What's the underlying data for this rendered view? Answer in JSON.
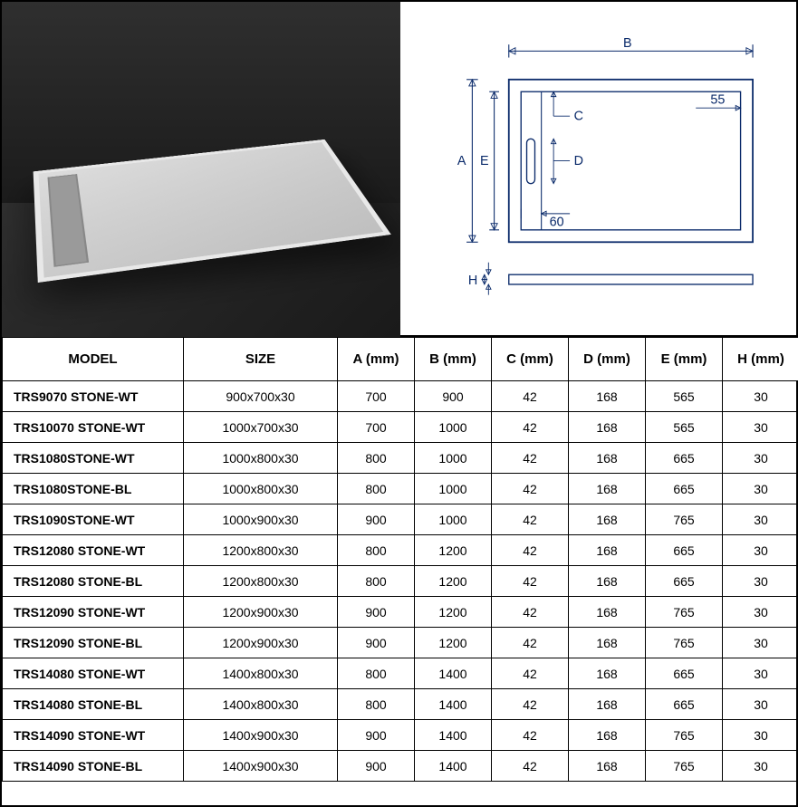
{
  "diagram": {
    "stroke_color": "#0a2a6a",
    "labels": {
      "A": "A",
      "B": "B",
      "C": "C",
      "D": "D",
      "E": "E",
      "H": "H",
      "inner_right": "55",
      "inner_bottom": "60"
    }
  },
  "table": {
    "headers": [
      "MODEL",
      "SIZE",
      "A (mm)",
      "B (mm)",
      "C (mm)",
      "D (mm)",
      "E (mm)",
      "H (mm)"
    ],
    "rows": [
      {
        "model": "TRS9070 STONE-WT",
        "size": "900x700x30",
        "A": "700",
        "B": "900",
        "C": "42",
        "D": "168",
        "E": "565",
        "H": "30"
      },
      {
        "model": "TRS10070 STONE-WT",
        "size": "1000x700x30",
        "A": "700",
        "B": "1000",
        "C": "42",
        "D": "168",
        "E": "565",
        "H": "30"
      },
      {
        "model": "TRS1080STONE-WT",
        "size": "1000x800x30",
        "A": "800",
        "B": "1000",
        "C": "42",
        "D": "168",
        "E": "665",
        "H": "30"
      },
      {
        "model": "TRS1080STONE-BL",
        "size": "1000x800x30",
        "A": "800",
        "B": "1000",
        "C": "42",
        "D": "168",
        "E": "665",
        "H": "30"
      },
      {
        "model": "TRS1090STONE-WT",
        "size": "1000x900x30",
        "A": "900",
        "B": "1000",
        "C": "42",
        "D": "168",
        "E": "765",
        "H": "30"
      },
      {
        "model": "TRS12080 STONE-WT",
        "size": "1200x800x30",
        "A": "800",
        "B": "1200",
        "C": "42",
        "D": "168",
        "E": "665",
        "H": "30"
      },
      {
        "model": "TRS12080 STONE-BL",
        "size": "1200x800x30",
        "A": "800",
        "B": "1200",
        "C": "42",
        "D": "168",
        "E": "665",
        "H": "30"
      },
      {
        "model": "TRS12090 STONE-WT",
        "size": "1200x900x30",
        "A": "900",
        "B": "1200",
        "C": "42",
        "D": "168",
        "E": "765",
        "H": "30"
      },
      {
        "model": "TRS12090 STONE-BL",
        "size": "1200x900x30",
        "A": "900",
        "B": "1200",
        "C": "42",
        "D": "168",
        "E": "765",
        "H": "30"
      },
      {
        "model": "TRS14080 STONE-WT",
        "size": "1400x800x30",
        "A": "800",
        "B": "1400",
        "C": "42",
        "D": "168",
        "E": "665",
        "H": "30"
      },
      {
        "model": "TRS14080 STONE-BL",
        "size": "1400x800x30",
        "A": "800",
        "B": "1400",
        "C": "42",
        "D": "168",
        "E": "665",
        "H": "30"
      },
      {
        "model": "TRS14090 STONE-WT",
        "size": "1400x900x30",
        "A": "900",
        "B": "1400",
        "C": "42",
        "D": "168",
        "E": "765",
        "H": "30"
      },
      {
        "model": "TRS14090 STONE-BL",
        "size": "1400x900x30",
        "A": "900",
        "B": "1400",
        "C": "42",
        "D": "168",
        "E": "765",
        "H": "30"
      }
    ]
  }
}
